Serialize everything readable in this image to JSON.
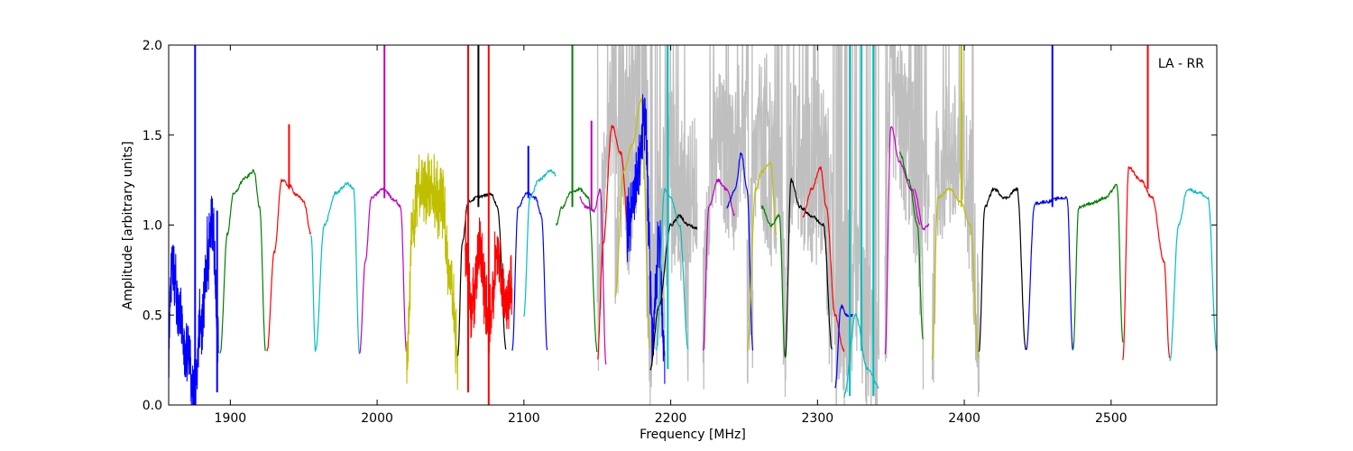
{
  "chart_data": {
    "type": "line",
    "title": "",
    "annotation": "LA - RR",
    "xlabel": "Frequency [MHz]",
    "ylabel": "Amplitude [arbitrary units]",
    "xlim": [
      1858,
      2572
    ],
    "ylim": [
      0.0,
      2.0
    ],
    "x_ticks": [
      1900,
      2000,
      2100,
      2200,
      2300,
      2400,
      2500
    ],
    "y_ticks": [
      0.0,
      0.5,
      1.0,
      1.5,
      2.0
    ],
    "x_tick_labels": [
      "1900",
      "2000",
      "2100",
      "2200",
      "2300",
      "2400",
      "2500"
    ],
    "y_tick_labels": [
      "0.0",
      "0.5",
      "1.0",
      "1.5",
      "2.0"
    ],
    "grid": false,
    "legend": "none",
    "background_series": {
      "color": "#bfbfbf"
    },
    "series": [
      {
        "color": "#0000ff",
        "x": [
          1858,
          1860,
          1865,
          1870,
          1875,
          1880,
          1885,
          1888,
          1892
        ],
        "y": [
          0.35,
          0.8,
          0.55,
          0.3,
          0.1,
          0.45,
          0.85,
          1.0,
          0.3
        ],
        "spikes": [
          {
            "x": 1876,
            "top": 2.0,
            "bottom": 0.0
          },
          {
            "x": 1891,
            "top": 1.08,
            "bottom": 0.07
          }
        ]
      },
      {
        "color": "#008000",
        "x": [
          1893,
          1898,
          1902,
          1910,
          1916,
          1920,
          1924
        ],
        "y": [
          0.28,
          0.95,
          1.17,
          1.26,
          1.3,
          1.1,
          0.3
        ],
        "spikes": []
      },
      {
        "color": "#ff0000",
        "x": [
          1925,
          1930,
          1935,
          1940,
          1945,
          1950,
          1955
        ],
        "y": [
          0.3,
          0.85,
          1.25,
          1.22,
          1.17,
          1.13,
          0.95
        ],
        "spikes": [
          {
            "x": 1940,
            "top": 1.56,
            "bottom": 1.2
          }
        ]
      },
      {
        "color": "#00bfbf",
        "x": [
          1955,
          1958,
          1964,
          1972,
          1980,
          1984,
          1988
        ],
        "y": [
          0.95,
          0.3,
          1.0,
          1.18,
          1.23,
          1.2,
          0.28
        ],
        "spikes": []
      },
      {
        "color": "#bf00bf",
        "x": [
          1988,
          1992,
          1996,
          2004,
          2012,
          2016,
          2020
        ],
        "y": [
          0.28,
          0.8,
          1.15,
          1.2,
          1.14,
          1.1,
          0.3
        ],
        "spikes": [
          {
            "x": 2005,
            "top": 2.0,
            "bottom": 1.15
          }
        ]
      },
      {
        "color": "#bfbf00",
        "x": [
          2020,
          2024,
          2028,
          2036,
          2044,
          2050,
          2055
        ],
        "y": [
          0.3,
          0.95,
          1.22,
          1.2,
          1.12,
          0.7,
          0.28
        ],
        "spikes": []
      },
      {
        "color": "#000000",
        "x": [
          2055,
          2058,
          2062,
          2070,
          2078,
          2082,
          2088
        ],
        "y": [
          0.28,
          0.9,
          1.13,
          1.16,
          1.17,
          1.1,
          0.3
        ],
        "spikes": [
          {
            "x": 2069,
            "top": 2.0,
            "bottom": 1.1
          }
        ]
      },
      {
        "color": "#ff0000",
        "x": [
          2060,
          2064,
          2070,
          2076,
          2082,
          2088,
          2092
        ],
        "y": [
          0.9,
          0.55,
          0.85,
          0.45,
          0.85,
          0.55,
          0.7
        ],
        "spikes": [
          {
            "x": 2062,
            "top": 2.0,
            "bottom": 0.07
          },
          {
            "x": 2076,
            "top": 2.0,
            "bottom": 0.0
          }
        ]
      },
      {
        "color": "#0000ff",
        "x": [
          2092,
          2096,
          2102,
          2108,
          2112,
          2116
        ],
        "y": [
          0.3,
          1.1,
          1.18,
          1.15,
          1.05,
          0.3
        ],
        "spikes": [
          {
            "x": 2103,
            "top": 1.44,
            "bottom": 1.15
          }
        ]
      },
      {
        "color": "#00bfbf",
        "x": [
          2100,
          2104,
          2110,
          2118,
          2122
        ],
        "y": [
          0.5,
          1.15,
          1.25,
          1.3,
          1.28
        ],
        "spikes": []
      },
      {
        "color": "#008000",
        "x": [
          2122,
          2126,
          2132,
          2138,
          2144,
          2150
        ],
        "y": [
          1.0,
          1.1,
          1.18,
          1.2,
          1.15,
          0.3
        ],
        "spikes": [
          {
            "x": 2133,
            "top": 2.0,
            "bottom": 1.1
          }
        ]
      },
      {
        "color": "#bf00bf",
        "x": [
          2138,
          2142,
          2148,
          2152,
          2156
        ],
        "y": [
          1.15,
          1.1,
          1.08,
          1.2,
          0.22
        ],
        "spikes": [
          {
            "x": 2146,
            "top": 1.58,
            "bottom": 1.08
          }
        ]
      },
      {
        "color": "#ff0000",
        "x": [
          2150,
          2154,
          2160,
          2166,
          2172
        ],
        "y": [
          0.25,
          0.9,
          1.55,
          1.4,
          0.9
        ],
        "spikes": []
      },
      {
        "color": "#bfbf00",
        "x": [
          2162,
          2168,
          2174,
          2180,
          2186
        ],
        "y": [
          0.6,
          1.3,
          1.45,
          1.7,
          0.3
        ],
        "spikes": []
      },
      {
        "color": "#0000ff",
        "x": [
          2170,
          2176,
          2182,
          2188,
          2192,
          2196
        ],
        "y": [
          1.0,
          1.2,
          1.6,
          0.4,
          0.9,
          0.25
        ],
        "spikes": []
      },
      {
        "color": "#000000",
        "x": [
          2186,
          2192,
          2200,
          2206,
          2212,
          2218
        ],
        "y": [
          0.2,
          0.55,
          1.0,
          1.05,
          1.0,
          0.98
        ],
        "spikes": []
      },
      {
        "color": "#00bfbf",
        "x": [
          2190,
          2196,
          2200,
          2206,
          2212
        ],
        "y": [
          0.3,
          1.2,
          1.15,
          1.0,
          0.3
        ],
        "spikes": [
          {
            "x": 2198,
            "top": 2.0,
            "bottom": 0.2
          }
        ]
      },
      {
        "color": "#bf00bf",
        "x": [
          2222,
          2226,
          2232,
          2238,
          2244
        ],
        "y": [
          0.3,
          1.1,
          1.25,
          1.2,
          1.05
        ],
        "spikes": []
      },
      {
        "color": "#0000ff",
        "x": [
          2238,
          2244,
          2248,
          2252,
          2256
        ],
        "y": [
          1.1,
          1.2,
          1.4,
          1.2,
          0.3
        ],
        "spikes": []
      },
      {
        "color": "#bfbf00",
        "x": [
          2252,
          2258,
          2262,
          2268,
          2272
        ],
        "y": [
          0.3,
          1.2,
          1.3,
          1.35,
          0.95
        ],
        "spikes": []
      },
      {
        "color": "#008000",
        "x": [
          2262,
          2268,
          2274,
          2278
        ],
        "y": [
          1.1,
          1.0,
          1.05,
          0.26
        ],
        "spikes": []
      },
      {
        "color": "#000000",
        "x": [
          2278,
          2282,
          2288,
          2296,
          2304,
          2310
        ],
        "y": [
          0.26,
          1.25,
          1.1,
          1.05,
          1.0,
          0.3
        ],
        "spikes": []
      },
      {
        "color": "#ff0000",
        "x": [
          2290,
          2296,
          2302,
          2306,
          2312,
          2318
        ],
        "y": [
          1.05,
          1.2,
          1.32,
          1.1,
          0.5,
          0.3
        ],
        "spikes": []
      },
      {
        "color": "#0000ff",
        "x": [
          2312,
          2316,
          2320,
          2324
        ],
        "y": [
          0.1,
          0.55,
          0.5,
          0.5
        ],
        "spikes": []
      },
      {
        "color": "#00bfbf",
        "x": [
          2318,
          2326,
          2334,
          2342
        ],
        "y": [
          0.05,
          0.5,
          0.2,
          0.1
        ],
        "spikes": [
          {
            "x": 2322,
            "top": 2.0,
            "bottom": 0.05
          },
          {
            "x": 2330,
            "top": 2.0,
            "bottom": 0.3
          },
          {
            "x": 2338,
            "top": 2.0,
            "bottom": 0.05
          }
        ]
      },
      {
        "color": "#bf00bf",
        "x": [
          2346,
          2350,
          2356,
          2364,
          2370
        ],
        "y": [
          0.28,
          1.55,
          1.35,
          1.2,
          1.0
        ],
        "spikes": []
      },
      {
        "color": "#008000",
        "x": [
          2356,
          2362,
          2368,
          2372
        ],
        "y": [
          1.4,
          1.25,
          1.0,
          0.35
        ],
        "spikes": []
      },
      {
        "color": "#bf00bf",
        "x": [
          2366,
          2372,
          2376
        ],
        "y": [
          1.2,
          0.98,
          1.0
        ],
        "spikes": []
      },
      {
        "color": "#bfbf00",
        "x": [
          2378,
          2382,
          2390,
          2398,
          2404,
          2410
        ],
        "y": [
          0.25,
          1.15,
          1.2,
          1.12,
          1.0,
          0.25
        ],
        "spikes": [
          {
            "x": 2398,
            "top": 2.0,
            "bottom": 1.1
          }
        ]
      },
      {
        "color": "#000000",
        "x": [
          2410,
          2414,
          2420,
          2428,
          2436,
          2442
        ],
        "y": [
          0.3,
          1.1,
          1.2,
          1.15,
          1.2,
          0.3
        ],
        "spikes": []
      },
      {
        "color": "#0000ff",
        "x": [
          2442,
          2448,
          2456,
          2466,
          2470,
          2474
        ],
        "y": [
          0.3,
          1.12,
          1.13,
          1.15,
          1.15,
          0.3
        ],
        "spikes": [
          {
            "x": 2460,
            "top": 2.0,
            "bottom": 1.1
          }
        ]
      },
      {
        "color": "#008000",
        "x": [
          2474,
          2478,
          2486,
          2496,
          2504,
          2508
        ],
        "y": [
          0.3,
          1.1,
          1.12,
          1.15,
          1.22,
          0.35
        ],
        "spikes": []
      },
      {
        "color": "#ff0000",
        "x": [
          2508,
          2512,
          2520,
          2528,
          2536,
          2540
        ],
        "y": [
          0.25,
          1.32,
          1.25,
          1.15,
          0.8,
          0.25
        ],
        "spikes": [
          {
            "x": 2525,
            "top": 2.0,
            "bottom": 1.2
          }
        ]
      },
      {
        "color": "#00bfbf",
        "x": [
          2540,
          2546,
          2552,
          2560,
          2566,
          2572
        ],
        "y": [
          0.25,
          1.0,
          1.2,
          1.18,
          1.15,
          0.3
        ],
        "spikes": []
      }
    ]
  }
}
